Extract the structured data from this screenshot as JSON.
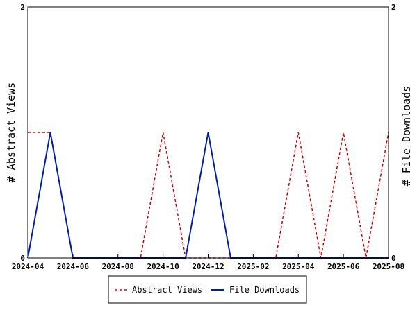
{
  "chart_data": {
    "type": "line",
    "x_ticks": [
      "2024-04",
      "2024-06",
      "2024-08",
      "2024-10",
      "2024-12",
      "2025-02",
      "2025-04",
      "2025-06",
      "2025-08"
    ],
    "x": [
      "2024-04",
      "2024-05",
      "2024-06",
      "2024-07",
      "2024-08",
      "2024-09",
      "2024-10",
      "2024-11",
      "2024-12",
      "2025-01",
      "2025-02",
      "2025-03",
      "2025-04",
      "2025-05",
      "2025-06",
      "2025-07",
      "2025-08"
    ],
    "ylabel_left": "# Abstract Views",
    "ylabel_right": "# File Downloads",
    "ylim_left": [
      0,
      2
    ],
    "ylim_right": [
      0,
      2
    ],
    "y_ticks_left": [
      "0",
      "2"
    ],
    "y_ticks_right": [
      "0",
      "2"
    ],
    "grid": false,
    "legend_position": "bottom",
    "series": [
      {
        "name": "Abstract Views",
        "color": "#cc0000",
        "style": "dashed",
        "axis": "left",
        "values": [
          1,
          1,
          0,
          0,
          0,
          0,
          1,
          0,
          0,
          0,
          0,
          0,
          1,
          0,
          1,
          0,
          1
        ]
      },
      {
        "name": "File Downloads",
        "color": "#0020a0",
        "style": "solid",
        "axis": "right",
        "values": [
          0,
          1,
          0,
          0,
          0,
          0,
          0,
          0,
          1,
          0,
          0,
          0,
          0,
          0,
          0,
          0,
          0
        ]
      }
    ]
  }
}
